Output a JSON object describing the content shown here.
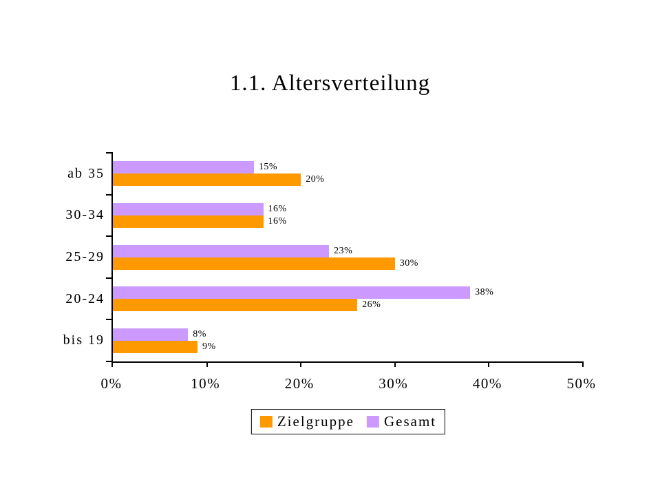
{
  "chart_data": {
    "type": "bar",
    "orientation": "horizontal",
    "title": "1.1. Altersverteilung",
    "categories": [
      "ab 35",
      "30-34",
      "25-29",
      "20-24",
      "bis 19"
    ],
    "series": [
      {
        "name": "Zielgruppe",
        "color": "#FF9900",
        "values": [
          20,
          16,
          30,
          26,
          9
        ]
      },
      {
        "name": "Gesamt",
        "color": "#CC99FF",
        "values": [
          15,
          16,
          23,
          38,
          8
        ]
      }
    ],
    "row_order_top_to_bottom": [
      "Gesamt",
      "Zielgruppe"
    ],
    "value_suffix": "%",
    "data_labels": true,
    "x_tick_labels": [
      "0%",
      "10%",
      "20%",
      "30%",
      "40%",
      "50%"
    ],
    "xlim": [
      0,
      50
    ],
    "grid": false,
    "legend_position": "bottom",
    "axis_color": "#000000",
    "background_color": "#FFFFFF",
    "text_color": "#000000"
  }
}
